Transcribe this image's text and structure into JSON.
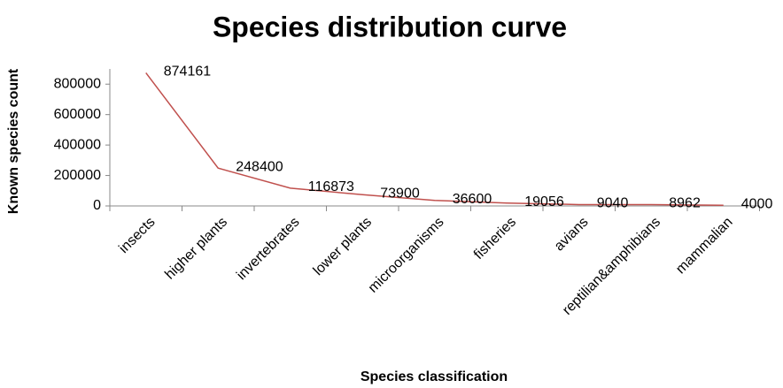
{
  "chart_data": {
    "type": "line",
    "title": "Species distribution curve",
    "x_label": "Species classification",
    "y_label": "Known species count",
    "categories": [
      "insects",
      "higher plants",
      "invertebrates",
      "lower plants",
      "microorganisms",
      "fisheries",
      "avians",
      "reptilian&amphibians",
      "mammalian"
    ],
    "series": [
      {
        "name": "Known species count",
        "color": "#c0504d",
        "values": [
          874161,
          248400,
          116873,
          73900,
          36600,
          19056,
          9040,
          8962,
          4000
        ]
      }
    ],
    "ylim": [
      0,
      900000
    ],
    "yticks": [
      0,
      200000,
      400000,
      600000,
      800000
    ],
    "grid": false
  }
}
